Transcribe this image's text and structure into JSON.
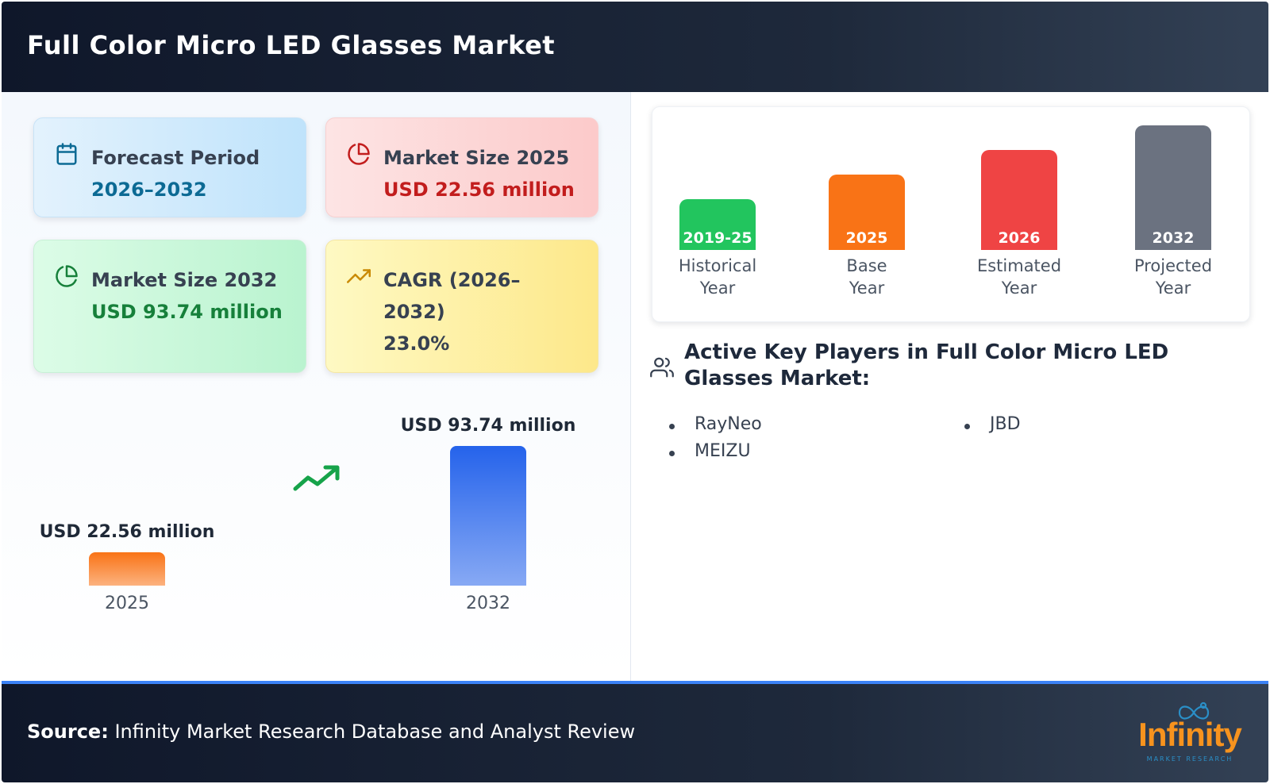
{
  "header": {
    "title": "Full Color Micro LED Glasses Market"
  },
  "cards": {
    "forecast": {
      "label": "Forecast Period",
      "value": "2026–2032",
      "icon": "calendar-icon",
      "color": "#0c6a94"
    },
    "market_2025": {
      "label": "Market Size 2025",
      "value": "USD 22.56 million",
      "icon": "pie-chart-icon",
      "color": "#c21d1d"
    },
    "market_2032": {
      "label": "Market Size 2032",
      "value": "USD 93.74 million",
      "icon": "pie-chart-icon",
      "color": "#16803a"
    },
    "cagr": {
      "label": "CAGR (2026–2032)",
      "value": "23.0%",
      "icon": "trending-up-icon",
      "color": "#ca8a04"
    }
  },
  "chart_data": [
    {
      "type": "bar",
      "categories": [
        "2025",
        "2032"
      ],
      "values": [
        22.56,
        93.74
      ],
      "value_labels": [
        "USD 22.56 million",
        "USD 93.74 million"
      ],
      "unit": "USD million",
      "colors": [
        "#f97316",
        "#2563eb"
      ],
      "title": "",
      "xlabel": "",
      "ylabel": ""
    },
    {
      "type": "bar",
      "categories": [
        "2019-25",
        "2025",
        "2026",
        "2032"
      ],
      "captions": [
        "Historical Year",
        "Base Year",
        "Estimated Year",
        "Projected Year"
      ],
      "caption_lines": [
        [
          "Historical",
          "Year"
        ],
        [
          "Base",
          "Year"
        ],
        [
          "Estimated",
          "Year"
        ],
        [
          "Projected",
          "Year"
        ]
      ],
      "levels": [
        1,
        2,
        3,
        4
      ],
      "colors": [
        "#22c55e",
        "#f97316",
        "#ef4444",
        "#6b7280"
      ],
      "title": "",
      "xlabel": "",
      "ylabel": ""
    }
  ],
  "players": {
    "title": "Active Key Players in Full Color Micro LED Glasses Market:",
    "icon": "users-icon",
    "items": [
      "RayNeo",
      "MEIZU",
      "JBD"
    ]
  },
  "footer": {
    "source_label": "Source:",
    "source_text": "Infinity Market Research Database and Analyst Review",
    "logo_text": "Infinity",
    "logo_subtext": "MARKET RESEARCH"
  }
}
